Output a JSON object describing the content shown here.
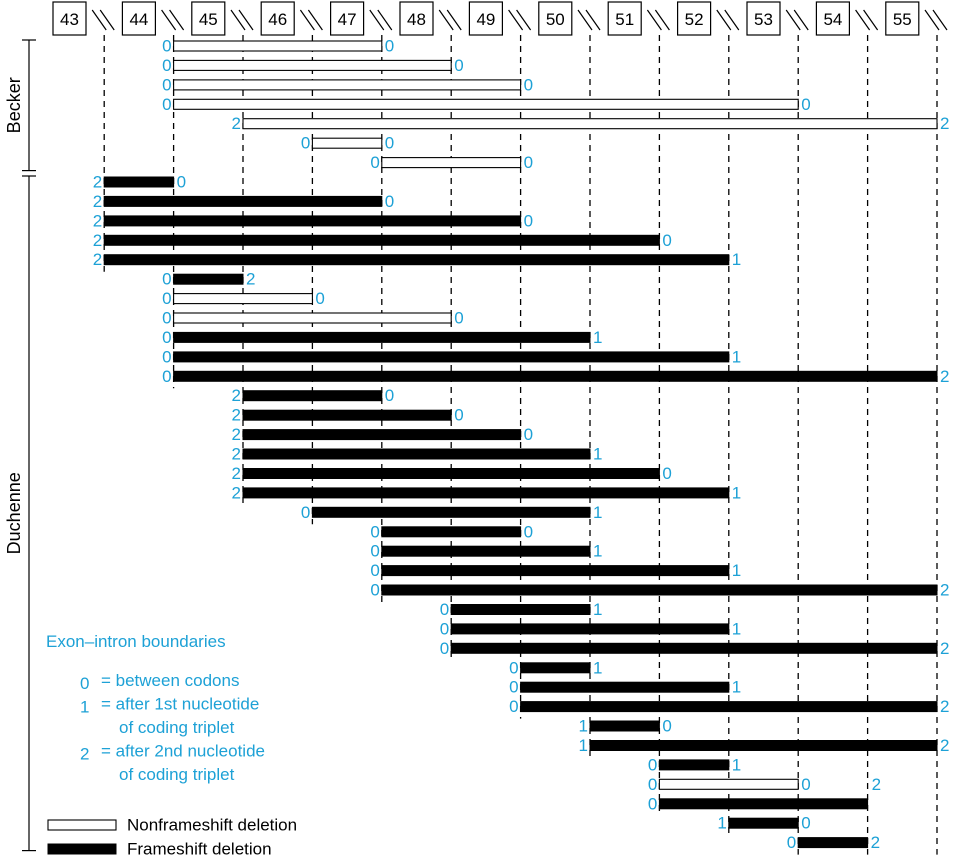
{
  "exons": [
    "43",
    "44",
    "45",
    "46",
    "47",
    "48",
    "49",
    "50",
    "51",
    "52",
    "53",
    "54",
    "55"
  ],
  "groups": [
    {
      "label": "Becker"
    },
    {
      "label": "Duchenne"
    }
  ],
  "deletions": [
    {
      "start": "45",
      "end": "47",
      "type": "nonframeshift",
      "left": "0",
      "right": "0",
      "group": "Becker"
    },
    {
      "start": "45",
      "end": "48",
      "type": "nonframeshift",
      "left": "0",
      "right": "0",
      "group": "Becker"
    },
    {
      "start": "45",
      "end": "49",
      "type": "nonframeshift",
      "left": "0",
      "right": "0",
      "group": "Becker"
    },
    {
      "start": "45",
      "end": "53",
      "type": "nonframeshift",
      "left": "0",
      "right": "0",
      "group": "Becker"
    },
    {
      "start": "46",
      "end": "55",
      "type": "nonframeshift",
      "left": "2",
      "right": "2",
      "group": "Becker"
    },
    {
      "start": "47",
      "end": "47",
      "type": "nonframeshift",
      "left": "0",
      "right": "0",
      "group": "Becker"
    },
    {
      "start": "48",
      "end": "49",
      "type": "nonframeshift",
      "left": "0",
      "right": "0",
      "group": "Becker"
    },
    {
      "start": "44",
      "end": "44",
      "type": "frameshift",
      "left": "2",
      "right": "0",
      "group": "Duchenne"
    },
    {
      "start": "44",
      "end": "47",
      "type": "frameshift",
      "left": "2",
      "right": "0",
      "group": "Duchenne"
    },
    {
      "start": "44",
      "end": "49",
      "type": "frameshift",
      "left": "2",
      "right": "0",
      "group": "Duchenne"
    },
    {
      "start": "44",
      "end": "51",
      "type": "frameshift",
      "left": "2",
      "right": "0",
      "group": "Duchenne"
    },
    {
      "start": "44",
      "end": "52",
      "type": "frameshift",
      "left": "2",
      "right": "1",
      "group": "Duchenne"
    },
    {
      "start": "45",
      "end": "45",
      "type": "frameshift",
      "left": "0",
      "right": "2",
      "group": "Duchenne"
    },
    {
      "start": "45",
      "end": "46",
      "type": "nonframeshift",
      "left": "0",
      "right": "0",
      "group": "Duchenne"
    },
    {
      "start": "45",
      "end": "48",
      "type": "nonframeshift",
      "left": "0",
      "right": "0",
      "group": "Duchenne"
    },
    {
      "start": "45",
      "end": "50",
      "type": "frameshift",
      "left": "0",
      "right": "1",
      "group": "Duchenne"
    },
    {
      "start": "45",
      "end": "52",
      "type": "frameshift",
      "left": "0",
      "right": "1",
      "group": "Duchenne"
    },
    {
      "start": "45",
      "end": "55",
      "type": "frameshift",
      "left": "0",
      "right": "2",
      "group": "Duchenne"
    },
    {
      "start": "46",
      "end": "47",
      "type": "frameshift",
      "left": "2",
      "right": "0",
      "group": "Duchenne"
    },
    {
      "start": "46",
      "end": "48",
      "type": "frameshift",
      "left": "2",
      "right": "0",
      "group": "Duchenne"
    },
    {
      "start": "46",
      "end": "49",
      "type": "frameshift",
      "left": "2",
      "right": "0",
      "group": "Duchenne"
    },
    {
      "start": "46",
      "end": "50",
      "type": "frameshift",
      "left": "2",
      "right": "1",
      "group": "Duchenne"
    },
    {
      "start": "46",
      "end": "51",
      "type": "frameshift",
      "left": "2",
      "right": "0",
      "group": "Duchenne"
    },
    {
      "start": "46",
      "end": "52",
      "type": "frameshift",
      "left": "2",
      "right": "1",
      "group": "Duchenne"
    },
    {
      "start": "47",
      "end": "50",
      "type": "frameshift",
      "left": "0",
      "right": "1",
      "group": "Duchenne"
    },
    {
      "start": "48",
      "end": "49",
      "type": "frameshift",
      "left": "0",
      "right": "0",
      "group": "Duchenne"
    },
    {
      "start": "48",
      "end": "50",
      "type": "frameshift",
      "left": "0",
      "right": "1",
      "group": "Duchenne"
    },
    {
      "start": "48",
      "end": "52",
      "type": "frameshift",
      "left": "0",
      "right": "1",
      "group": "Duchenne"
    },
    {
      "start": "48",
      "end": "55",
      "type": "frameshift",
      "left": "0",
      "right": "2",
      "group": "Duchenne"
    },
    {
      "start": "49",
      "end": "50",
      "type": "frameshift",
      "left": "0",
      "right": "1",
      "group": "Duchenne"
    },
    {
      "start": "49",
      "end": "52",
      "type": "frameshift",
      "left": "0",
      "right": "1",
      "group": "Duchenne"
    },
    {
      "start": "49",
      "end": "55",
      "type": "frameshift",
      "left": "0",
      "right": "2",
      "group": "Duchenne"
    },
    {
      "start": "50",
      "end": "50",
      "type": "frameshift",
      "left": "0",
      "right": "1",
      "group": "Duchenne"
    },
    {
      "start": "50",
      "end": "52",
      "type": "frameshift",
      "left": "0",
      "right": "1",
      "group": "Duchenne"
    },
    {
      "start": "50",
      "end": "55",
      "type": "frameshift",
      "left": "0",
      "right": "2",
      "group": "Duchenne"
    },
    {
      "start": "51",
      "end": "51",
      "type": "frameshift",
      "left": "1",
      "right": "0",
      "group": "Duchenne"
    },
    {
      "start": "51",
      "end": "55",
      "type": "frameshift",
      "left": "1",
      "right": "2",
      "group": "Duchenne"
    },
    {
      "start": "52",
      "end": "52",
      "type": "frameshift",
      "left": "0",
      "right": "1",
      "group": "Duchenne"
    },
    {
      "start": "52",
      "end": "53",
      "type": "nonframeshift",
      "left": "0",
      "right": "0",
      "group": "Duchenne",
      "extra_label": "2"
    },
    {
      "start": "52",
      "end": "54",
      "type": "frameshift",
      "left": "0",
      "right": "",
      "group": "Duchenne"
    },
    {
      "start": "53",
      "end": "53",
      "type": "frameshift",
      "left": "1",
      "right": "0",
      "group": "Duchenne"
    },
    {
      "start": "54",
      "end": "54",
      "type": "frameshift",
      "left": "0",
      "right": "2",
      "group": "Duchenne"
    }
  ],
  "legend": {
    "title": "Exon–intron boundaries",
    "items": [
      {
        "key": "0",
        "lines": [
          "= between codons"
        ]
      },
      {
        "key": "1",
        "lines": [
          "= after 1st nucleotide",
          "of coding triplet"
        ]
      },
      {
        "key": "2",
        "lines": [
          "= after 2nd nucleotide",
          "of coding triplet"
        ]
      }
    ],
    "nonframeshift_label": "Nonframeshift deletion",
    "frameshift_label": "Frameshift deletion"
  },
  "colors": {
    "accent": "#1da1d6",
    "bar": "#000000",
    "background": "#ffffff"
  }
}
